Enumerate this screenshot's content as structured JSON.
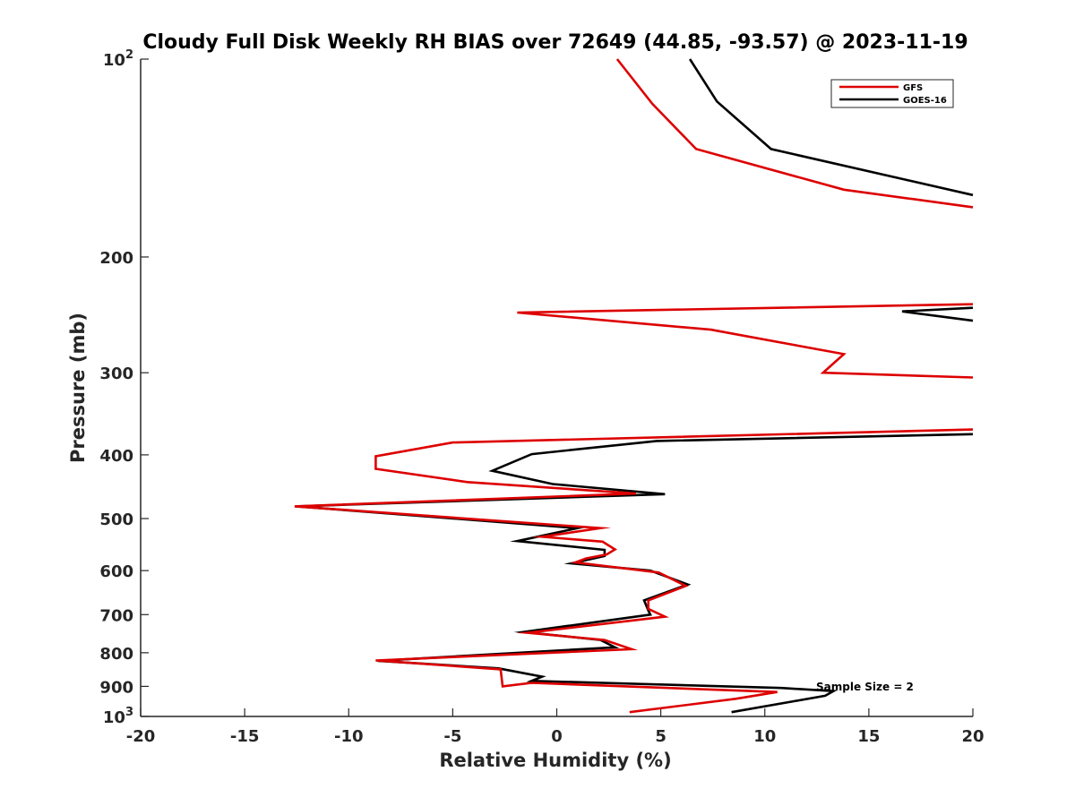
{
  "chart_data": {
    "type": "line",
    "title": "Cloudy Full Disk Weekly RH BIAS over 72649 (44.85, -93.57) @ 2023-11-19",
    "xlabel": "Relative Humidity (%)",
    "ylabel": "Pressure (mb)",
    "xlim": [
      -20,
      20
    ],
    "ylim": [
      100,
      1000
    ],
    "y_scale": "log",
    "y_reversed": true,
    "x_ticks": [
      "-20",
      "-15",
      "-10",
      "-5",
      "0",
      "5",
      "10",
      "15",
      "20"
    ],
    "y_ticks": [
      {
        "value": 100,
        "base": "10",
        "exp": "2"
      },
      {
        "value": 200,
        "label": "200"
      },
      {
        "value": 300,
        "label": "300"
      },
      {
        "value": 400,
        "label": "400"
      },
      {
        "value": 500,
        "label": "500"
      },
      {
        "value": 600,
        "label": "600"
      },
      {
        "value": 700,
        "label": "700"
      },
      {
        "value": 800,
        "label": "800"
      },
      {
        "value": 900,
        "label": "900"
      },
      {
        "value": 1000,
        "base": "10",
        "exp": "3"
      }
    ],
    "grid": false,
    "legend_position": "top-right",
    "annotation": "Sample Size = 2",
    "series": [
      {
        "name": "GFS",
        "color": "#dd0000",
        "segments": [
          [
            {
              "x": 2.9,
              "y": 100
            },
            {
              "x": 4.6,
              "y": 117
            },
            {
              "x": 6.7,
              "y": 137
            },
            {
              "x": 13.8,
              "y": 158
            },
            {
              "x": 20.0,
              "y": 168
            }
          ],
          [
            {
              "x": 20.0,
              "y": 236
            },
            {
              "x": -1.9,
              "y": 243
            },
            {
              "x": 7.4,
              "y": 258
            },
            {
              "x": 13.8,
              "y": 281
            },
            {
              "x": 12.8,
              "y": 300
            },
            {
              "x": 20.0,
              "y": 305
            }
          ],
          [
            {
              "x": 20.0,
              "y": 366
            },
            {
              "x": -5.0,
              "y": 383
            },
            {
              "x": -8.7,
              "y": 402
            },
            {
              "x": -8.7,
              "y": 420
            },
            {
              "x": -4.3,
              "y": 440
            },
            {
              "x": 3.8,
              "y": 458
            },
            {
              "x": -12.6,
              "y": 479
            },
            {
              "x": 2.1,
              "y": 517
            },
            {
              "x": -0.7,
              "y": 533
            },
            {
              "x": 2.2,
              "y": 542
            },
            {
              "x": 2.8,
              "y": 557
            },
            {
              "x": 2.4,
              "y": 567
            },
            {
              "x": 1.4,
              "y": 575
            },
            {
              "x": 0.9,
              "y": 583
            },
            {
              "x": 4.9,
              "y": 604
            },
            {
              "x": 6.2,
              "y": 633
            },
            {
              "x": 4.4,
              "y": 666
            },
            {
              "x": 4.4,
              "y": 686
            },
            {
              "x": 5.2,
              "y": 705
            },
            {
              "x": -1.4,
              "y": 746
            },
            {
              "x": 2.3,
              "y": 765
            },
            {
              "x": 3.6,
              "y": 790
            },
            {
              "x": -8.7,
              "y": 822
            },
            {
              "x": -2.7,
              "y": 848
            },
            {
              "x": -2.6,
              "y": 900
            },
            {
              "x": -1.2,
              "y": 889
            },
            {
              "x": 10.6,
              "y": 918
            },
            {
              "x": 8.6,
              "y": 940
            },
            {
              "x": 3.5,
              "y": 985
            }
          ]
        ]
      },
      {
        "name": "GOES-16",
        "color": "#000000",
        "segments": [
          [
            {
              "x": 6.4,
              "y": 100
            },
            {
              "x": 7.7,
              "y": 116
            },
            {
              "x": 10.3,
              "y": 137
            },
            {
              "x": 20.0,
              "y": 161
            }
          ],
          [
            {
              "x": 20.0,
              "y": 239
            },
            {
              "x": 16.6,
              "y": 242
            },
            {
              "x": 20.0,
              "y": 250
            }
          ],
          [
            {
              "x": 20.0,
              "y": 372
            },
            {
              "x": 4.8,
              "y": 381
            },
            {
              "x": -1.2,
              "y": 399
            },
            {
              "x": -3.1,
              "y": 423
            },
            {
              "x": -0.2,
              "y": 443
            },
            {
              "x": 5.2,
              "y": 459
            },
            {
              "x": -12.5,
              "y": 479
            },
            {
              "x": 1.0,
              "y": 517
            },
            {
              "x": -1.9,
              "y": 541
            },
            {
              "x": 2.3,
              "y": 558
            },
            {
              "x": 2.3,
              "y": 570
            },
            {
              "x": 0.7,
              "y": 585
            },
            {
              "x": 4.5,
              "y": 600
            },
            {
              "x": 6.3,
              "y": 630
            },
            {
              "x": 4.2,
              "y": 666
            },
            {
              "x": 4.4,
              "y": 690
            },
            {
              "x": 4.5,
              "y": 700
            },
            {
              "x": -1.6,
              "y": 744
            },
            {
              "x": 2.1,
              "y": 765
            },
            {
              "x": 2.8,
              "y": 785
            },
            {
              "x": -8.6,
              "y": 823
            },
            {
              "x": -2.8,
              "y": 845
            },
            {
              "x": -0.7,
              "y": 870
            },
            {
              "x": -1.2,
              "y": 883
            },
            {
              "x": 10.8,
              "y": 905
            },
            {
              "x": 13.3,
              "y": 915
            },
            {
              "x": 12.9,
              "y": 930
            },
            {
              "x": 11.4,
              "y": 948
            },
            {
              "x": 8.4,
              "y": 985
            }
          ]
        ]
      }
    ]
  }
}
